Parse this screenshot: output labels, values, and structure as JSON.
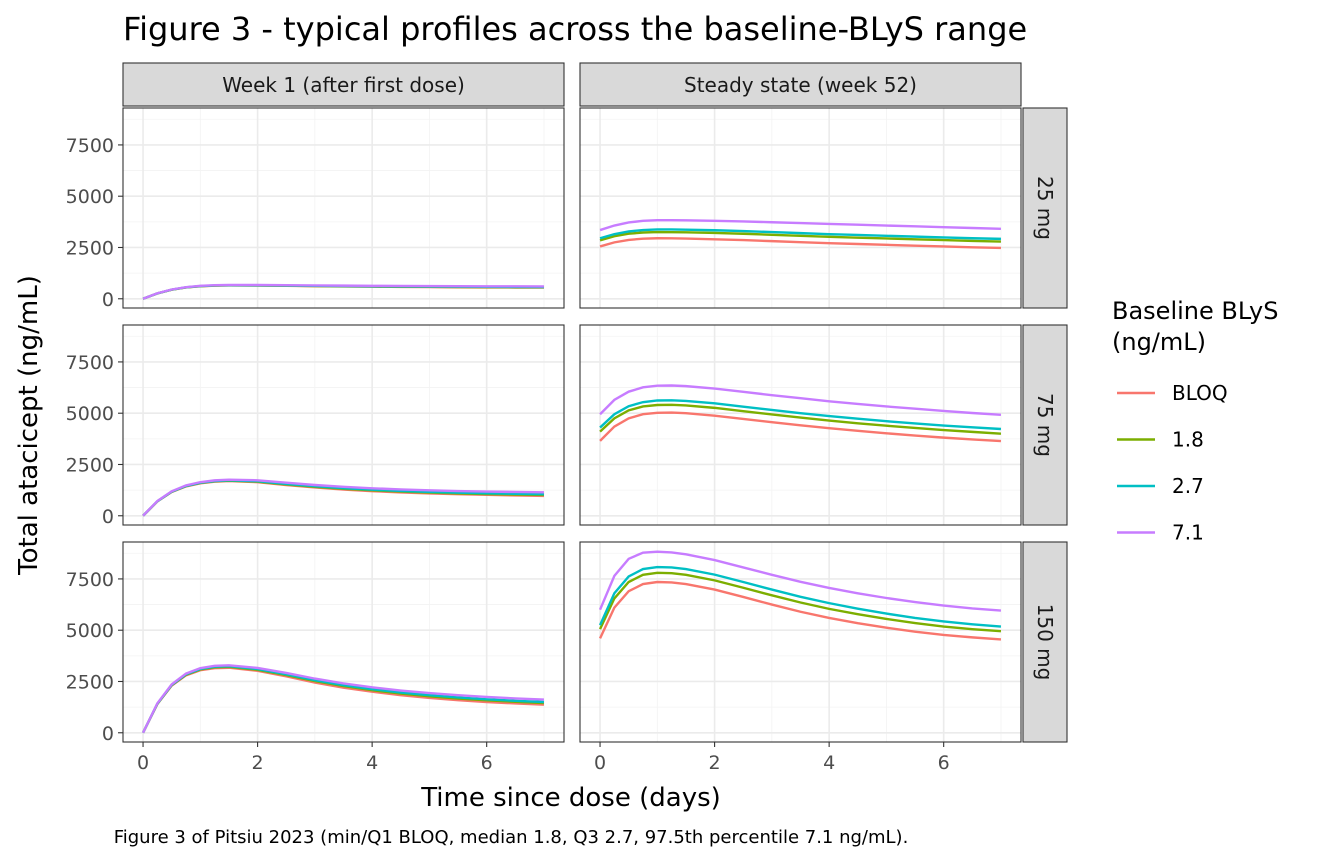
{
  "chart_data": {
    "type": "line",
    "title": "Figure 3 - typical profiles across the baseline-BLyS range",
    "caption": "Figure 3 of Pitsiu 2023 (min/Q1 BLOQ, median 1.8, Q3 2.7, 97.5th percentile 7.1 ng/mL).",
    "xlabel": "Time since dose (days)",
    "ylabel": "Total atacicept (ng/mL)",
    "xlim": [
      -0.35,
      7.35
    ],
    "ylim": [
      -450,
      9300
    ],
    "x_ticks": [
      0,
      2,
      4,
      6
    ],
    "y_ticks": [
      0,
      2500,
      5000,
      7500
    ],
    "x_tick_labels": [
      "0",
      "2",
      "4",
      "6"
    ],
    "y_tick_labels": [
      "0",
      "2500",
      "5000",
      "7500"
    ],
    "grid": true,
    "legend": {
      "title_lines": [
        "Baseline BLyS",
        "(ng/mL)"
      ],
      "position": "right",
      "entries": [
        {
          "label": "BLOQ",
          "color": "#F8766D"
        },
        {
          "label": "1.8",
          "color": "#7CAE00"
        },
        {
          "label": "2.7",
          "color": "#00BFC4"
        },
        {
          "label": "7.1",
          "color": "#C77CFF"
        }
      ]
    },
    "x": [
      0,
      0.25,
      0.5,
      0.75,
      1,
      1.25,
      1.5,
      2,
      2.5,
      3,
      3.5,
      4,
      4.5,
      5,
      5.5,
      6,
      6.5,
      7
    ],
    "column_strips": [
      "Week 1 (after first dose)",
      "Steady state (week 52)"
    ],
    "row_strips": [
      "25 mg",
      "75 mg",
      "150 mg"
    ],
    "panels": [
      {
        "row": "25 mg",
        "column": "Week 1 (after first dose)",
        "series": [
          {
            "name": "BLOQ",
            "values": [
              0,
              260,
              440,
              550,
              610,
              640,
              650,
              645,
              630,
              615,
              600,
              590,
              580,
              570,
              560,
              555,
              550,
              545
            ]
          },
          {
            "name": "1.8",
            "values": [
              0,
              262,
              443,
              554,
              615,
              645,
              656,
              652,
              638,
              623,
              610,
              600,
              590,
              582,
              574,
              568,
              562,
              558
            ]
          },
          {
            "name": "2.7",
            "values": [
              0,
              264,
              446,
              558,
              620,
              650,
              662,
              659,
              646,
              632,
              620,
              611,
              602,
              594,
              587,
              581,
              576,
              572
            ]
          },
          {
            "name": "7.1",
            "values": [
              0,
              268,
              452,
              566,
              630,
              662,
              675,
              674,
              663,
              651,
              641,
              633,
              626,
              620,
              614,
              609,
              605,
              600
            ]
          }
        ]
      },
      {
        "row": "25 mg",
        "column": "Steady state (week 52)",
        "series": [
          {
            "name": "BLOQ",
            "values": [
              2550,
              2750,
              2870,
              2930,
              2950,
              2945,
              2935,
              2900,
              2860,
              2810,
              2760,
              2710,
              2670,
              2630,
              2590,
              2550,
              2510,
              2480
            ]
          },
          {
            "name": "1.8",
            "values": [
              2850,
              3050,
              3170,
              3230,
              3250,
              3248,
              3240,
              3210,
              3170,
              3120,
              3070,
              3020,
              2980,
              2940,
              2900,
              2860,
              2820,
              2790
            ]
          },
          {
            "name": "2.7",
            "values": [
              2950,
              3150,
              3280,
              3350,
              3380,
              3378,
              3370,
              3340,
              3300,
              3250,
              3200,
              3150,
              3110,
              3070,
              3030,
              2990,
              2950,
              2920
            ]
          },
          {
            "name": "7.1",
            "values": [
              3350,
              3570,
              3720,
              3800,
              3830,
              3830,
              3825,
              3800,
              3770,
              3730,
              3690,
              3650,
              3610,
              3570,
              3530,
              3490,
              3450,
              3410
            ]
          }
        ]
      },
      {
        "row": "75 mg",
        "column": "Week 1 (after first dose)",
        "series": [
          {
            "name": "BLOQ",
            "values": [
              0,
              700,
              1160,
              1430,
              1580,
              1660,
              1690,
              1640,
              1500,
              1380,
              1280,
              1200,
              1140,
              1090,
              1050,
              1020,
              990,
              970
            ]
          },
          {
            "name": "1.8",
            "values": [
              0,
              705,
              1170,
              1445,
              1600,
              1680,
              1710,
              1665,
              1530,
              1410,
              1315,
              1240,
              1180,
              1130,
              1090,
              1060,
              1035,
              1015
            ]
          },
          {
            "name": "2.7",
            "values": [
              0,
              710,
              1178,
              1455,
              1612,
              1694,
              1726,
              1685,
              1555,
              1440,
              1345,
              1270,
              1212,
              1165,
              1127,
              1098,
              1074,
              1055
            ]
          },
          {
            "name": "7.1",
            "values": [
              0,
              720,
              1195,
              1480,
              1640,
              1725,
              1760,
              1730,
              1610,
              1500,
              1410,
              1340,
              1285,
              1240,
              1205,
              1180,
              1160,
              1145
            ]
          }
        ]
      },
      {
        "row": "75 mg",
        "column": "Steady state (week 52)",
        "series": [
          {
            "name": "BLOQ",
            "values": [
              3650,
              4350,
              4750,
              4950,
              5020,
              5030,
              5000,
              4880,
              4720,
              4560,
              4410,
              4270,
              4140,
              4020,
              3910,
              3810,
              3720,
              3640
            ]
          },
          {
            "name": "1.8",
            "values": [
              4100,
              4750,
              5140,
              5330,
              5400,
              5410,
              5380,
              5260,
              5100,
              4940,
              4790,
              4640,
              4510,
              4390,
              4280,
              4180,
              4090,
              4000
            ]
          },
          {
            "name": "2.7",
            "values": [
              4300,
              4950,
              5340,
              5540,
              5620,
              5630,
              5600,
              5480,
              5320,
              5160,
              5000,
              4860,
              4730,
              4610,
              4500,
              4400,
              4310,
              4230
            ]
          },
          {
            "name": "7.1",
            "values": [
              4950,
              5650,
              6050,
              6260,
              6340,
              6350,
              6320,
              6200,
              6040,
              5880,
              5730,
              5580,
              5450,
              5330,
              5220,
              5110,
              5010,
              4920
            ]
          }
        ]
      },
      {
        "row": "150 mg",
        "column": "Week 1 (after first dose)",
        "series": [
          {
            "name": "BLOQ",
            "values": [
              0,
              1400,
              2300,
              2800,
              3050,
              3150,
              3170,
              3020,
              2750,
              2450,
              2200,
              2000,
              1830,
              1700,
              1590,
              1500,
              1430,
              1370
            ]
          },
          {
            "name": "1.8",
            "values": [
              0,
              1410,
              2320,
              2830,
              3085,
              3190,
              3215,
              3070,
              2810,
              2520,
              2275,
              2075,
              1910,
              1780,
              1670,
              1580,
              1510,
              1450
            ]
          },
          {
            "name": "2.7",
            "values": [
              0,
              1420,
              2335,
              2850,
              3110,
              3220,
              3245,
              3105,
              2850,
              2565,
              2320,
              2125,
              1960,
              1830,
              1720,
              1630,
              1560,
              1500
            ]
          },
          {
            "name": "7.1",
            "values": [
              0,
              1435,
              2360,
              2885,
              3150,
              3262,
              3290,
              3160,
              2915,
              2640,
              2405,
              2215,
              2060,
              1935,
              1830,
              1745,
              1675,
              1620
            ]
          }
        ]
      },
      {
        "row": "150 mg",
        "column": "Steady state (week 52)",
        "series": [
          {
            "name": "BLOQ",
            "values": [
              4600,
              6100,
              6900,
              7250,
              7350,
              7330,
              7250,
              6980,
              6620,
              6250,
              5900,
              5600,
              5340,
              5120,
              4930,
              4770,
              4650,
              4550
            ]
          },
          {
            "name": "1.8",
            "values": [
              5050,
              6550,
              7350,
              7700,
              7800,
              7780,
              7700,
              7430,
              7070,
              6700,
              6350,
              6040,
              5780,
              5550,
              5350,
              5180,
              5050,
              4950
            ]
          },
          {
            "name": "2.7",
            "values": [
              5250,
              6800,
              7620,
              7980,
              8080,
              8060,
              7980,
              7710,
              7350,
              6980,
              6630,
              6320,
              6050,
              5810,
              5600,
              5430,
              5290,
              5180
            ]
          },
          {
            "name": "7.1",
            "values": [
              6000,
              7650,
              8480,
              8780,
              8830,
              8790,
              8700,
              8420,
              8060,
              7700,
              7360,
              7060,
              6800,
              6570,
              6370,
              6200,
              6060,
              5960
            ]
          }
        ]
      }
    ]
  }
}
